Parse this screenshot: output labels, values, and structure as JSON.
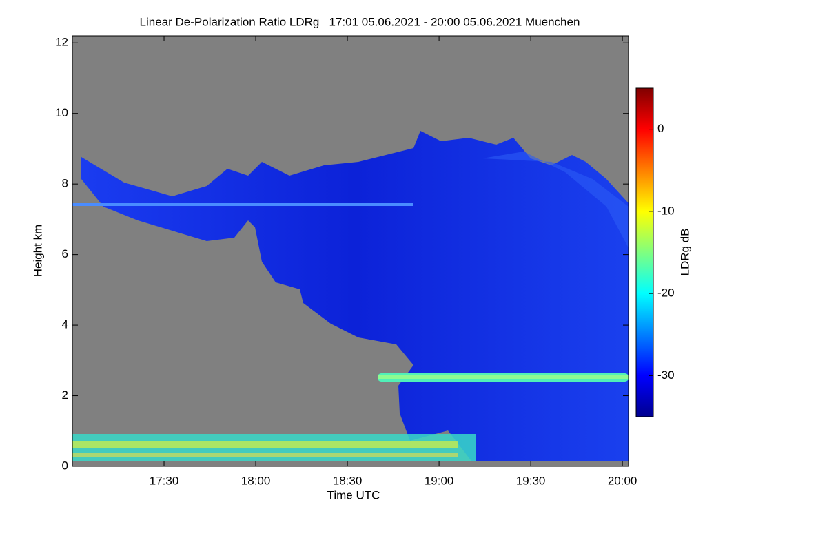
{
  "chart_data": {
    "type": "heatmap",
    "title": "Linear De-Polarization Ratio LDRg   17:01 05.06.2021 - 20:00 05.06.2021 Muenchen",
    "xlabel": "Time UTC",
    "ylabel": "Height km",
    "xlim": [
      1020,
      1202
    ],
    "xticks": [
      {
        "value": 1050,
        "label": "17:30"
      },
      {
        "value": 1080,
        "label": "18:00"
      },
      {
        "value": 1110,
        "label": "18:30"
      },
      {
        "value": 1140,
        "label": "19:00"
      },
      {
        "value": 1170,
        "label": "19:30"
      },
      {
        "value": 1200,
        "label": "20:00"
      }
    ],
    "ylim": [
      0,
      12.2
    ],
    "yticks": [
      0,
      2,
      4,
      6,
      8,
      10,
      12
    ],
    "colorbar": {
      "label": "LDRg dB",
      "lim": [
        -35,
        5
      ],
      "ticks": [
        0,
        -10,
        -20,
        -30
      ],
      "colormap": "jet"
    }
  }
}
